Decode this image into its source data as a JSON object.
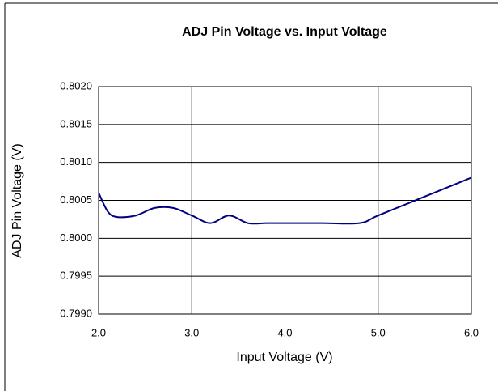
{
  "chart_data": {
    "type": "line",
    "title": "ADJ Pin Voltage vs. Input Voltage",
    "x_label": "Input Voltage (V)",
    "y_label": "ADJ Pin Voltage (V)",
    "x": [
      2.0,
      2.1,
      2.2,
      2.4,
      2.6,
      2.8,
      3.0,
      3.2,
      3.4,
      3.6,
      3.8,
      4.0,
      4.4,
      4.8,
      5.0,
      5.5,
      6.0
    ],
    "series": [
      {
        "color": "#000080",
        "values": [
          0.8006,
          0.80035,
          0.80028,
          0.8003,
          0.8004,
          0.8004,
          0.8003,
          0.8002,
          0.8003,
          0.8002,
          0.8002,
          0.8002,
          0.8002,
          0.8002,
          0.8003,
          0.80055,
          0.8008
        ]
      }
    ],
    "xlim": [
      2.0,
      6.0
    ],
    "xticks": [
      {
        "value": 2,
        "label": "2.0"
      },
      {
        "value": 3,
        "label": "3.0"
      },
      {
        "value": 4,
        "label": "4.0"
      },
      {
        "value": 5,
        "label": "5.0"
      },
      {
        "value": 6,
        "label": "6.0"
      }
    ],
    "ylim": [
      0.799,
      0.802
    ],
    "yticks": [
      {
        "value": 0.799,
        "label": "0.7990"
      },
      {
        "value": 0.7995,
        "label": "0.7995"
      },
      {
        "value": 0.8,
        "label": "0.8000"
      },
      {
        "value": 0.8005,
        "label": "0.8005"
      },
      {
        "value": 0.801,
        "label": "0.8010"
      },
      {
        "value": 0.8015,
        "label": "0.8015"
      },
      {
        "value": 0.802,
        "label": "0.8020"
      }
    ],
    "grid": true
  }
}
